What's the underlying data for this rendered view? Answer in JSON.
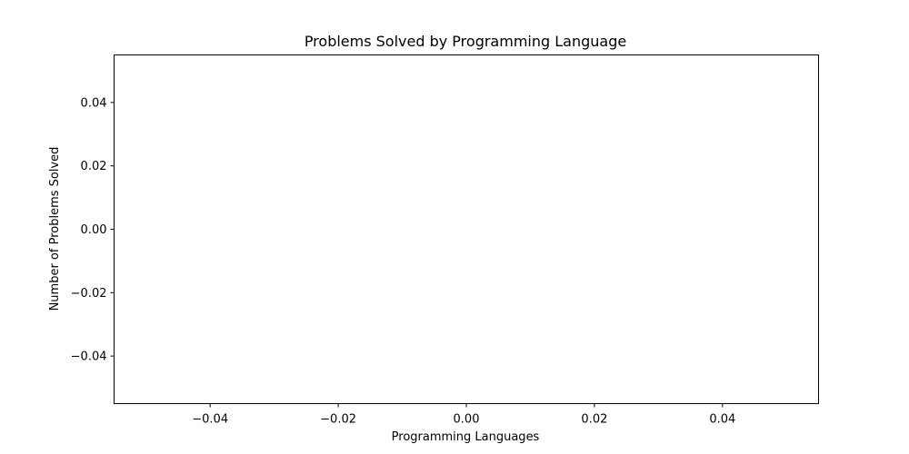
{
  "chart_data": {
    "type": "bar",
    "title": "Problems Solved by Programming Language",
    "xlabel": "Programming Languages",
    "ylabel": "Number of Problems Solved",
    "categories": [],
    "values": [],
    "xlim": [
      -0.055,
      0.055
    ],
    "ylim": [
      -0.055,
      0.055
    ],
    "xticks": [
      -0.04,
      -0.02,
      0.0,
      0.02,
      0.04
    ],
    "xtick_labels": [
      "−0.04",
      "−0.02",
      "0.00",
      "0.02",
      "0.04"
    ],
    "yticks": [
      0.04,
      0.02,
      0.0,
      -0.02,
      -0.04
    ],
    "ytick_labels": [
      "0.04",
      "0.02",
      "0.00",
      "−0.02",
      "−0.04"
    ],
    "grid": false,
    "legend": "none"
  }
}
